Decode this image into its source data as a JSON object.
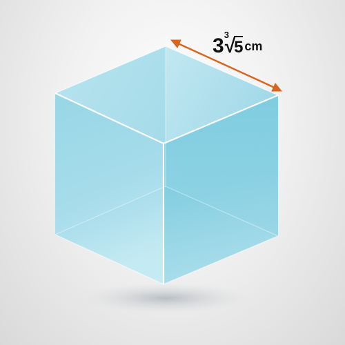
{
  "figure": {
    "edge_label": {
      "coefficient": "3",
      "root_index": "3",
      "root_symbol": "√",
      "radicand": "5",
      "unit": "cm"
    },
    "colors": {
      "cube_light": "#c6e9f2",
      "cube_mid": "#8fd0e2",
      "cube_dark": "#5fbfd6",
      "edge_highlight": "#ffffff",
      "dimension_arrow": "#d9661f",
      "shadow": "#9aa3ab"
    },
    "shape": "cube",
    "annotation": "edge-length"
  }
}
